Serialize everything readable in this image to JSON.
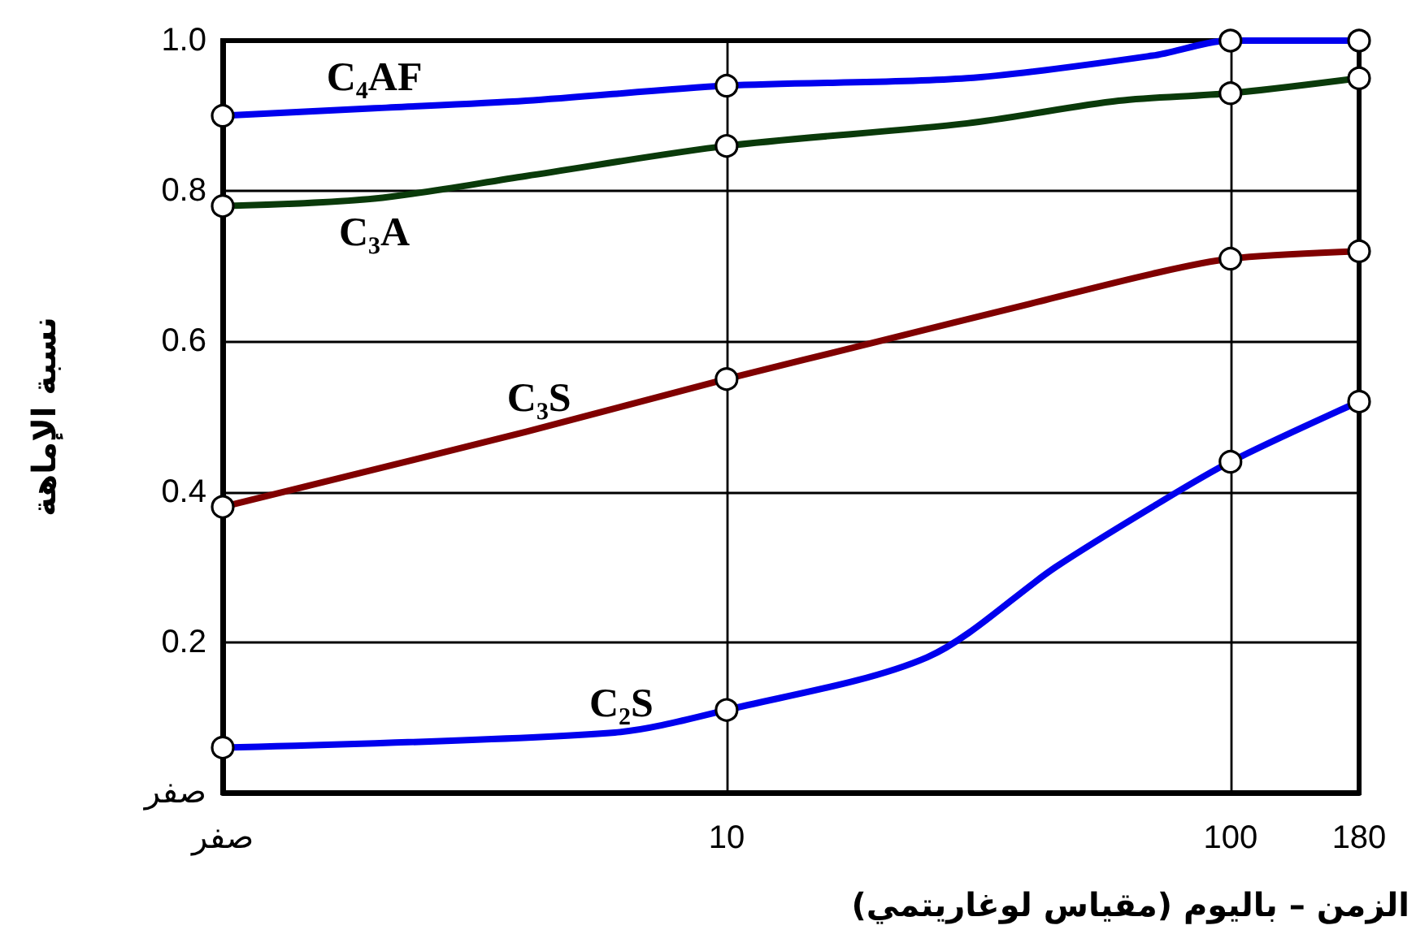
{
  "chart_data": {
    "type": "line",
    "xlabel": "الزمن – باليوم (مقياس لوغاريتمي)",
    "ylabel": "نسبة الإماهة",
    "log": "x",
    "xlim": [
      1,
      180
    ],
    "xticks": [
      {
        "value": 1,
        "label": "صفر"
      },
      10,
      100,
      180
    ],
    "ylim": [
      0,
      1
    ],
    "yticks": [
      {
        "value": 0,
        "label": "صفر"
      },
      0.2,
      0.4,
      0.6,
      0.8,
      {
        "value": 1,
        "label": "1.0"
      }
    ],
    "grid": true,
    "marker": "circle",
    "series": [
      {
        "name": "C₄AF",
        "color": "#0000ee",
        "x": [
          1,
          2,
          4,
          10,
          30,
          70,
          100,
          180
        ],
        "values": [
          0.9,
          0.91,
          0.92,
          0.94,
          0.95,
          0.98,
          1.0,
          1.0
        ]
      },
      {
        "name": "C₃A",
        "color": "#0a3a0a",
        "x": [
          1,
          2,
          4,
          10,
          30,
          60,
          100,
          180
        ],
        "values": [
          0.78,
          0.79,
          0.82,
          0.86,
          0.89,
          0.92,
          0.93,
          0.95
        ]
      },
      {
        "name": "C₃S",
        "color": "#800000",
        "x": [
          1,
          4,
          10,
          20,
          40,
          70,
          100,
          180
        ],
        "values": [
          0.38,
          0.48,
          0.55,
          0.6,
          0.65,
          0.69,
          0.71,
          0.72
        ]
      },
      {
        "name": "C₂S",
        "color": "#0000ee",
        "x": [
          1,
          6,
          10,
          25,
          45,
          70,
          100,
          180
        ],
        "values": [
          0.06,
          0.08,
          0.11,
          0.18,
          0.3,
          0.38,
          0.44,
          0.52
        ]
      }
    ]
  }
}
